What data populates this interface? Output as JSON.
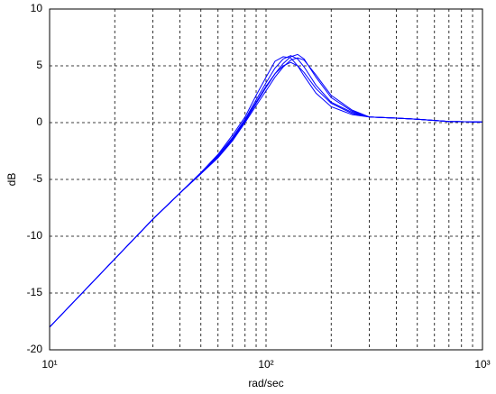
{
  "chart_data": {
    "type": "line",
    "x_label": "rad/sec",
    "y_label": "dB",
    "x": [
      10,
      20,
      30,
      40,
      50,
      60,
      70,
      80,
      90,
      100,
      110,
      120,
      130,
      140,
      150,
      170,
      200,
      250,
      300,
      400,
      500,
      700,
      1000
    ],
    "series": [
      {
        "color": "#0000ff",
        "values": [
          -18,
          -12,
          -8.5,
          -6.2,
          -4.4,
          -2.8,
          -1.1,
          0.5,
          2.4,
          4.0,
          5.4,
          5.8,
          5.7,
          5.0,
          4.1,
          2.6,
          1.4,
          0.7,
          0.5,
          0.4,
          0.3,
          0.1,
          0.05
        ]
      },
      {
        "color": "#0000ff",
        "values": [
          -18,
          -12,
          -8.5,
          -6.2,
          -4.4,
          -2.9,
          -1.3,
          0.3,
          2.0,
          3.5,
          4.8,
          5.6,
          5.9,
          5.6,
          4.9,
          3.3,
          1.8,
          0.9,
          0.5,
          0.4,
          0.3,
          0.1,
          0.05
        ]
      },
      {
        "color": "#0000ff",
        "values": [
          -18,
          -12,
          -8.5,
          -6.2,
          -4.5,
          -3.0,
          -1.5,
          0.1,
          1.7,
          3.1,
          4.3,
          5.2,
          5.8,
          6.0,
          5.6,
          4.0,
          2.2,
          1.0,
          0.5,
          0.4,
          0.3,
          0.1,
          0.05
        ]
      },
      {
        "color": "#0000ff",
        "values": [
          -18,
          -12,
          -8.5,
          -6.2,
          -4.5,
          -3.0,
          -1.4,
          0.2,
          1.8,
          3.2,
          4.3,
          5.0,
          5.3,
          5.0,
          4.4,
          3.0,
          1.7,
          0.8,
          0.5,
          0.4,
          0.3,
          0.1,
          0.05
        ]
      },
      {
        "color": "#0000ff",
        "values": [
          -18,
          -12,
          -8.5,
          -6.2,
          -4.5,
          -3.1,
          -1.6,
          0.0,
          1.5,
          2.8,
          4.0,
          4.9,
          5.5,
          5.7,
          5.5,
          4.2,
          2.4,
          1.1,
          0.5,
          0.4,
          0.3,
          0.1,
          0.05
        ]
      }
    ],
    "log_x": true,
    "xlim": [
      10,
      1000
    ],
    "xticks": [
      {
        "value": 10,
        "label": "10¹"
      },
      {
        "value": 100,
        "label": "10²"
      },
      {
        "value": 1000,
        "label": "10³"
      }
    ],
    "xminorticks": [
      20,
      30,
      40,
      50,
      60,
      70,
      80,
      90,
      200,
      300,
      400,
      500,
      600,
      700,
      800,
      900
    ],
    "ylim": [
      -20,
      10
    ],
    "yticks": [
      -20,
      -15,
      -10,
      -5,
      0,
      5,
      10
    ],
    "grid": true
  }
}
